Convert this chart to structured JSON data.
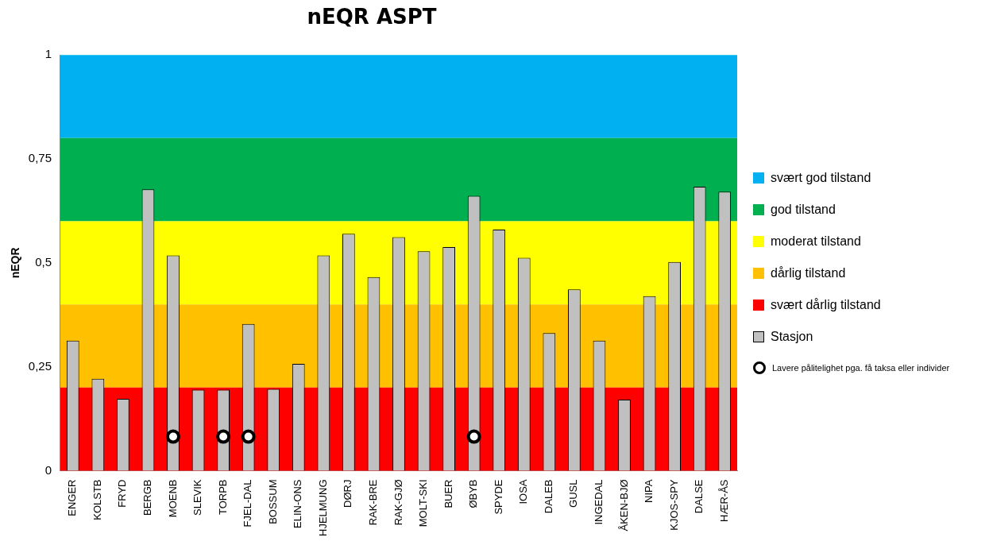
{
  "chart_data": {
    "type": "bar",
    "title": "nEQR ASPT",
    "ylabel": "nEQR",
    "categories": [
      "ENGER",
      "KOLSTB",
      "FRYD",
      "BERGB",
      "MOENB",
      "SLEVIK",
      "TORPB",
      "FJEL-DAL",
      "BOSSUM",
      "ELIN-ONS",
      "HJELMUNG",
      "DØRJ",
      "RAK-BRE",
      "RAK-GJØ",
      "MOLT-SKI",
      "BUER",
      "ØBYB",
      "SPYDE",
      "IOSA",
      "DALEB",
      "GUSL",
      "INGEDAL",
      "ÅKEN-BJØ",
      "NIPA",
      "KJOS-SPY",
      "DALSE",
      "HÆR-ÅS"
    ],
    "series": [
      {
        "name": "Stasjon",
        "color": "#c0c0c0",
        "values": [
          0.313,
          0.221,
          0.173,
          0.677,
          0.518,
          0.195,
          0.195,
          0.353,
          0.197,
          0.257,
          0.518,
          0.57,
          0.466,
          0.562,
          0.528,
          0.538,
          0.661,
          0.58,
          0.512,
          0.331,
          0.436,
          0.313,
          0.171,
          0.42,
          0.502,
          0.683,
          0.671
        ]
      },
      {
        "name": "Lavere pålitelighet pga. få taksa eller individer",
        "type": "scatter",
        "color": "#000000",
        "marker": "circle",
        "x": [
          "MOENB",
          "TORPB",
          "FJEL-DAL",
          "ØBYB"
        ],
        "values": [
          0.082,
          0.082,
          0.082,
          0.082
        ]
      }
    ],
    "bands": [
      {
        "axis": "y",
        "from": 0.8,
        "to": 1,
        "label": "svært god tilstand",
        "color": "#00b0f0"
      },
      {
        "axis": "y",
        "from": 0.6,
        "to": 0.8,
        "label": "god tilstand",
        "color": "#00b050"
      },
      {
        "axis": "y",
        "from": 0.4,
        "to": 0.6,
        "label": "moderat tilstand",
        "color": "#ffff00"
      },
      {
        "axis": "y",
        "from": 0.2,
        "to": 0.4,
        "label": "dårlig tilstand",
        "color": "#ffc000"
      },
      {
        "axis": "y",
        "from": 0,
        "to": 0.2,
        "label": "svært dårlig tilstand",
        "color": "#ff0000"
      }
    ],
    "ylim": [
      0,
      1
    ],
    "yticks": [
      0,
      {
        "value": 0.25,
        "label": "0,25"
      },
      {
        "value": 0.5,
        "label": "0,5"
      },
      {
        "value": 0.75,
        "label": "0,75"
      },
      1
    ],
    "grid": false,
    "legend": "right"
  }
}
